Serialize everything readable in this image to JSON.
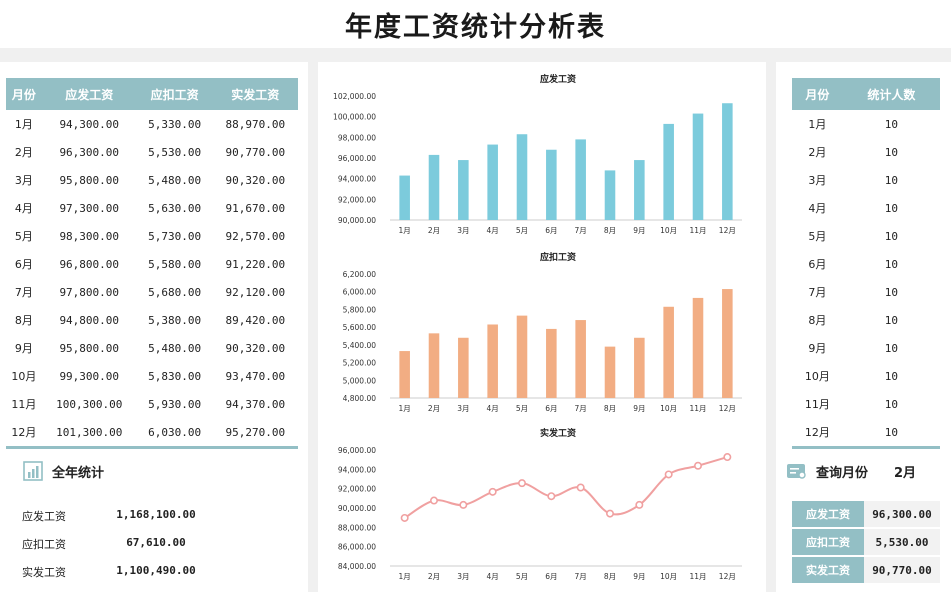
{
  "page": {
    "title": "年度工资统计分析表"
  },
  "salary_table": {
    "headers": [
      "月份",
      "应发工资",
      "应扣工资",
      "实发工资"
    ],
    "rows": [
      [
        "1月",
        "94,300.00",
        "5,330.00",
        "88,970.00"
      ],
      [
        "2月",
        "96,300.00",
        "5,530.00",
        "90,770.00"
      ],
      [
        "3月",
        "95,800.00",
        "5,480.00",
        "90,320.00"
      ],
      [
        "4月",
        "97,300.00",
        "5,630.00",
        "91,670.00"
      ],
      [
        "5月",
        "98,300.00",
        "5,730.00",
        "92,570.00"
      ],
      [
        "6月",
        "96,800.00",
        "5,580.00",
        "91,220.00"
      ],
      [
        "7月",
        "97,800.00",
        "5,680.00",
        "92,120.00"
      ],
      [
        "8月",
        "94,800.00",
        "5,380.00",
        "89,420.00"
      ],
      [
        "9月",
        "95,800.00",
        "5,480.00",
        "90,320.00"
      ],
      [
        "10月",
        "99,300.00",
        "5,830.00",
        "93,470.00"
      ],
      [
        "11月",
        "100,300.00",
        "5,930.00",
        "94,370.00"
      ],
      [
        "12月",
        "101,300.00",
        "6,030.00",
        "95,270.00"
      ]
    ]
  },
  "annual": {
    "title": "全年统计",
    "icon": "chart-icon",
    "items": [
      {
        "label": "应发工资",
        "value": "1,168,100.00"
      },
      {
        "label": "应扣工资",
        "value": "67,610.00"
      },
      {
        "label": "实发工资",
        "value": "1,100,490.00"
      }
    ]
  },
  "count_table": {
    "headers": [
      "月份",
      "统计人数"
    ],
    "rows": [
      [
        "1月",
        "10"
      ],
      [
        "2月",
        "10"
      ],
      [
        "3月",
        "10"
      ],
      [
        "4月",
        "10"
      ],
      [
        "5月",
        "10"
      ],
      [
        "6月",
        "10"
      ],
      [
        "7月",
        "10"
      ],
      [
        "8月",
        "10"
      ],
      [
        "9月",
        "10"
      ],
      [
        "10月",
        "10"
      ],
      [
        "11月",
        "10"
      ],
      [
        "12月",
        "10"
      ]
    ]
  },
  "query": {
    "label": "查询月份",
    "month": "2月",
    "icon": "query-icon",
    "items": [
      {
        "label": "应发工资",
        "value": "96,300.00"
      },
      {
        "label": "应扣工资",
        "value": "5,530.00"
      },
      {
        "label": "实发工资",
        "value": "90,770.00"
      }
    ]
  },
  "chart_data": [
    {
      "type": "bar",
      "title": "应发工资",
      "categories": [
        "1月",
        "2月",
        "3月",
        "4月",
        "5月",
        "6月",
        "7月",
        "8月",
        "9月",
        "10月",
        "11月",
        "12月"
      ],
      "values": [
        94300,
        96300,
        95800,
        97300,
        98300,
        96800,
        97800,
        94800,
        95800,
        99300,
        100300,
        101300
      ],
      "ylim": [
        90000,
        102000
      ],
      "yticks": [
        "90,000.00",
        "92,000.00",
        "94,000.00",
        "96,000.00",
        "98,000.00",
        "100,000.00",
        "102,000.00"
      ],
      "color": "#7ccbdc"
    },
    {
      "type": "bar",
      "title": "应扣工资",
      "categories": [
        "1月",
        "2月",
        "3月",
        "4月",
        "5月",
        "6月",
        "7月",
        "8月",
        "9月",
        "10月",
        "11月",
        "12月"
      ],
      "values": [
        5330,
        5530,
        5480,
        5630,
        5730,
        5580,
        5680,
        5380,
        5480,
        5830,
        5930,
        6030
      ],
      "ylim": [
        4800,
        6200
      ],
      "yticks": [
        "4,800.00",
        "5,000.00",
        "5,200.00",
        "5,400.00",
        "5,600.00",
        "5,800.00",
        "6,000.00",
        "6,200.00"
      ],
      "color": "#f2ad83"
    },
    {
      "type": "line",
      "title": "实发工资",
      "categories": [
        "1月",
        "2月",
        "3月",
        "4月",
        "5月",
        "6月",
        "7月",
        "8月",
        "9月",
        "10月",
        "11月",
        "12月"
      ],
      "values": [
        88970,
        90770,
        90320,
        91670,
        92570,
        91220,
        92120,
        89420,
        90320,
        93470,
        94370,
        95270
      ],
      "ylim": [
        84000,
        96000
      ],
      "yticks": [
        "84,000.00",
        "86,000.00",
        "88,000.00",
        "90,000.00",
        "92,000.00",
        "94,000.00",
        "96,000.00"
      ],
      "color": "#f0a0a0"
    }
  ]
}
